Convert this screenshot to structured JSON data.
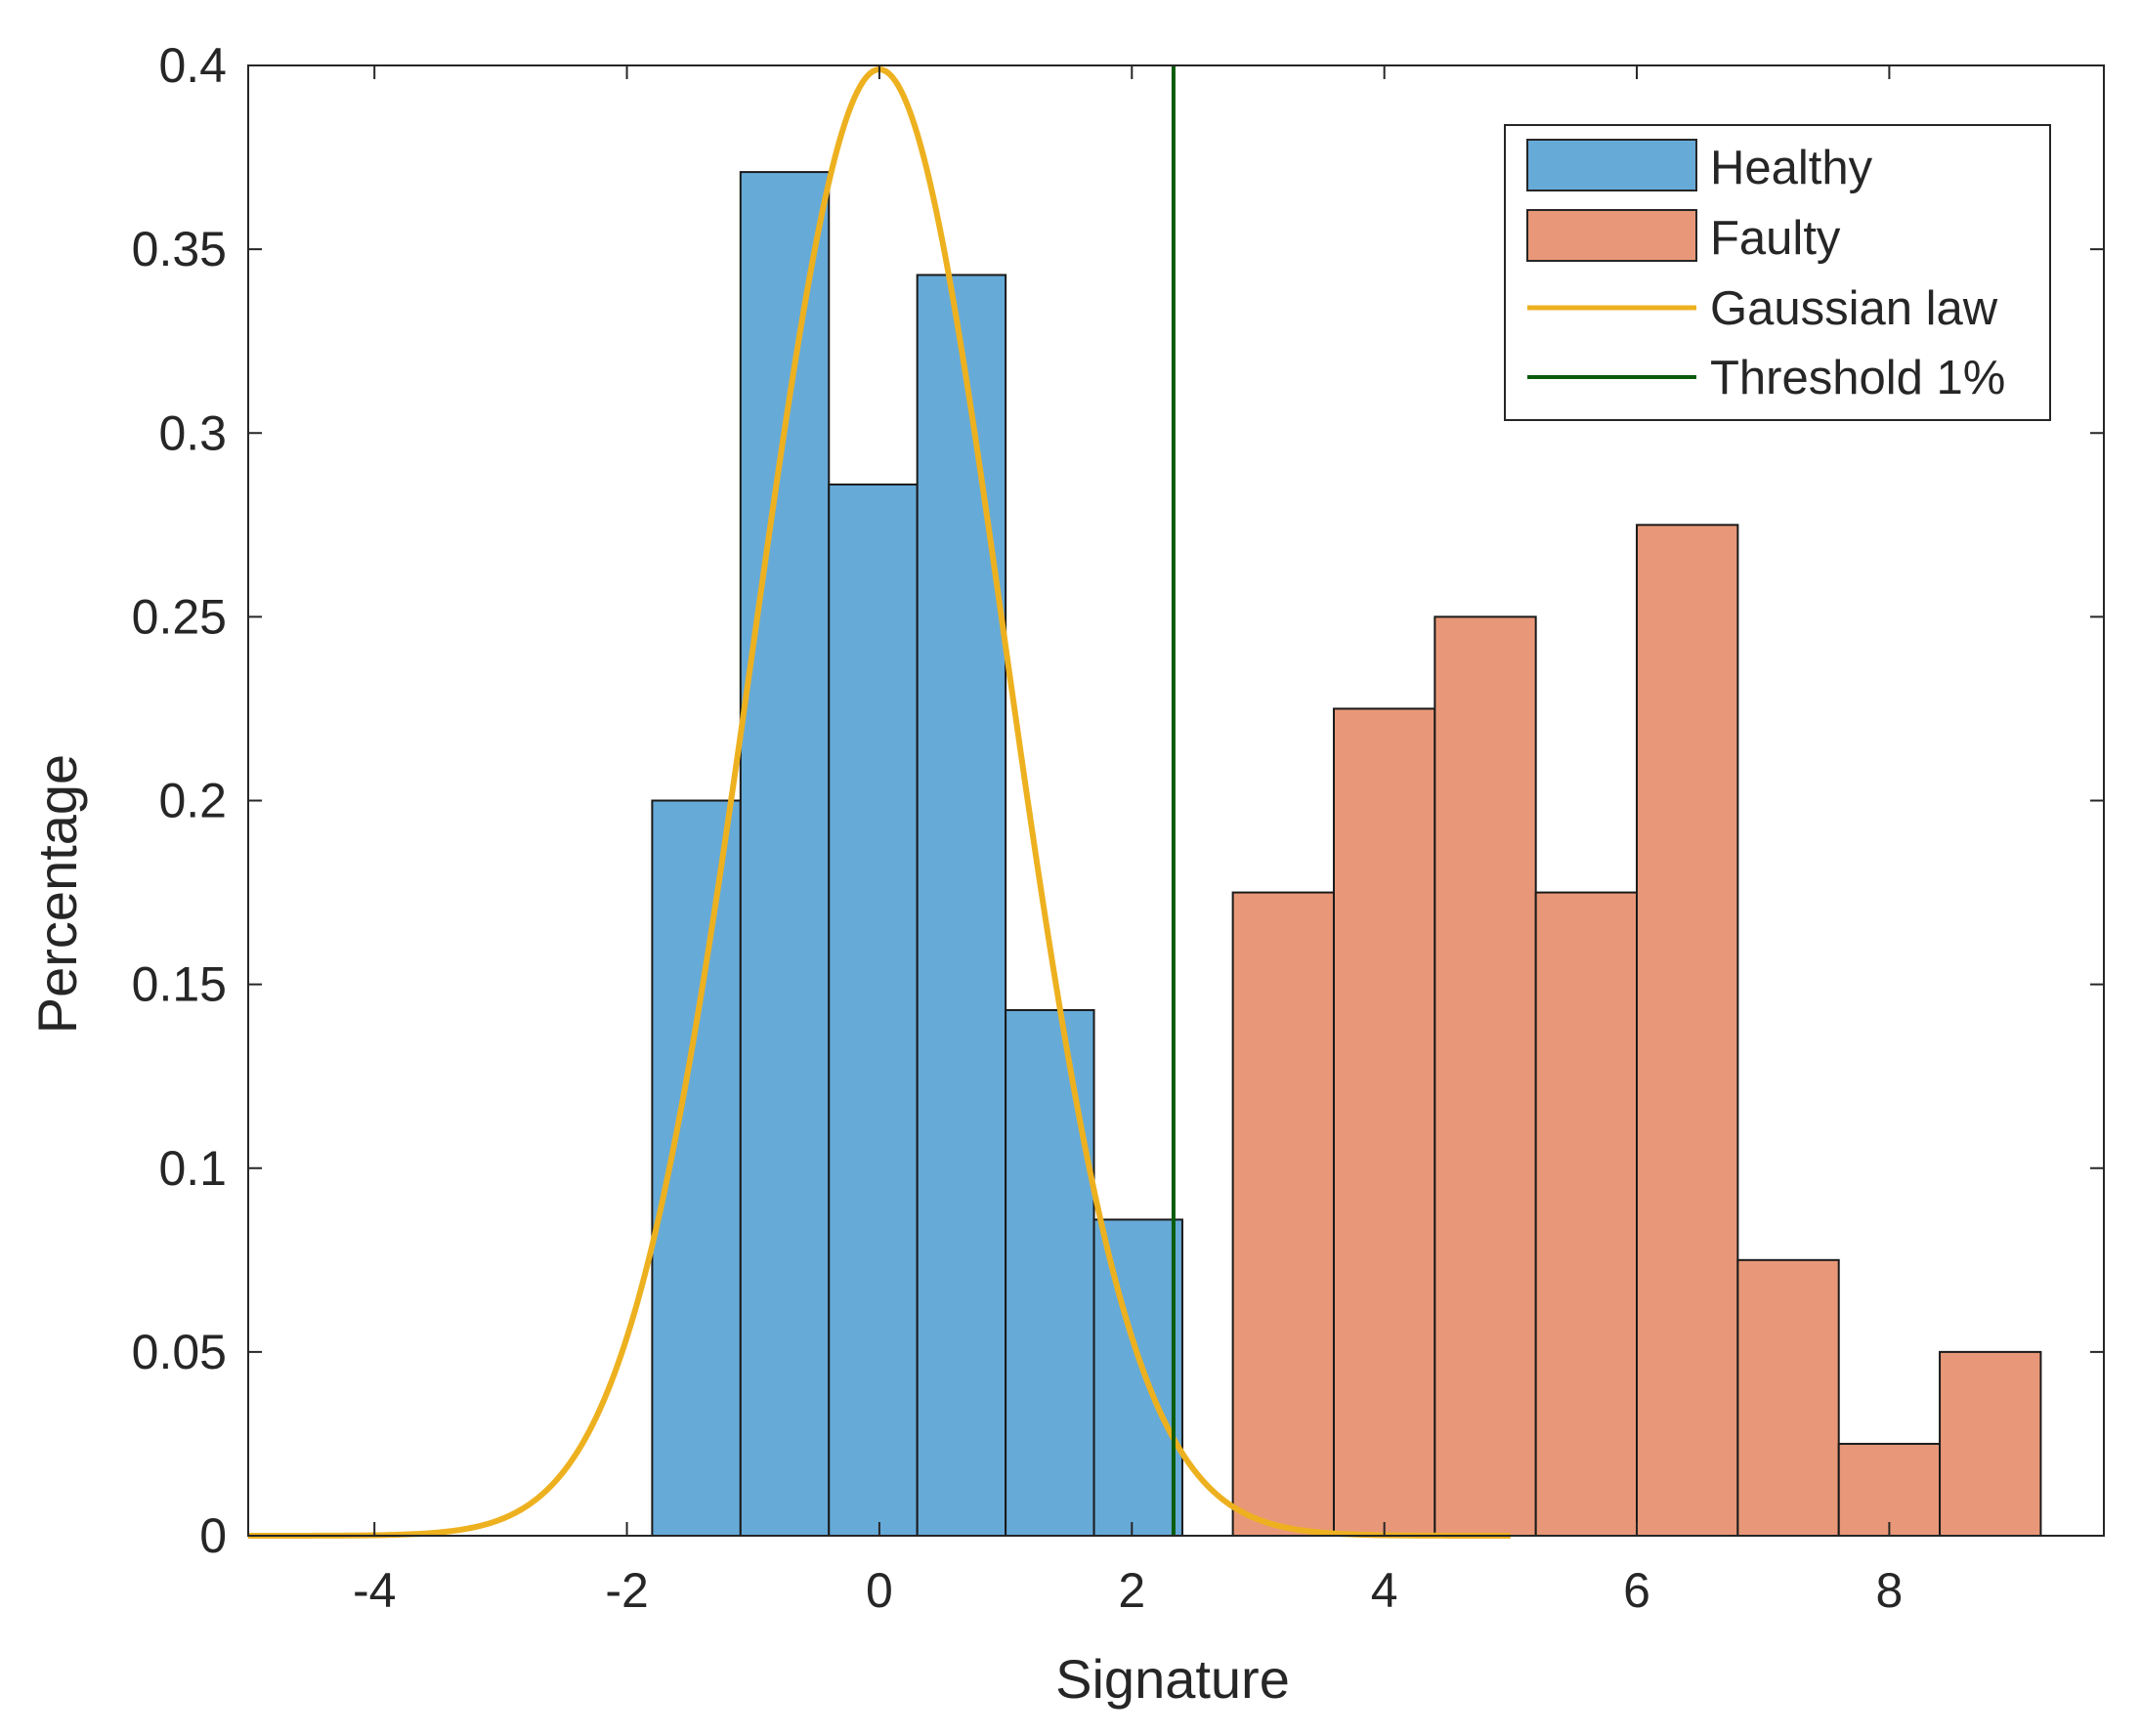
{
  "chart_data": {
    "type": "bar",
    "title": "",
    "xlabel": "Signature",
    "ylabel": "Percentage",
    "xlim": [
      -5,
      9.7
    ],
    "ylim": [
      0,
      0.4
    ],
    "xticks": [
      -4,
      -2,
      0,
      2,
      4,
      6,
      8
    ],
    "xtick_labels": [
      "-4",
      "-2",
      "0",
      "2",
      "4",
      "6",
      "8"
    ],
    "yticks": [
      0,
      0.05,
      0.1,
      0.15,
      0.2,
      0.25,
      0.3,
      0.35,
      0.4
    ],
    "ytick_labels": [
      "0",
      "0.05",
      "0.1",
      "0.15",
      "0.2",
      "0.25",
      "0.3",
      "0.35",
      "0.4"
    ],
    "grid": false,
    "legend_position": "top-right",
    "series": [
      {
        "name": "Healthy",
        "kind": "histogram",
        "color": "#66aad8",
        "bin_edges": [
          -1.8,
          -1.1,
          -0.4,
          0.3,
          1.0,
          1.7,
          2.4
        ],
        "values": [
          0.2,
          0.371,
          0.286,
          0.343,
          0.143,
          0.086
        ]
      },
      {
        "name": "Faulty",
        "kind": "histogram",
        "color": "#e89878",
        "bin_edges": [
          2.8,
          3.6,
          4.4,
          5.2,
          6.0,
          6.8,
          7.6,
          8.4,
          9.2
        ],
        "values": [
          0.175,
          0.225,
          0.25,
          0.175,
          0.275,
          0.075,
          0.025,
          0.05
        ]
      },
      {
        "name": "Gaussian law",
        "kind": "line",
        "color": "#edb120",
        "mean": 0,
        "std": 1,
        "x_range": [
          -5,
          5
        ]
      },
      {
        "name": "Threshold 1%",
        "kind": "vline",
        "color": "#0a5c0a",
        "x": 2.33
      }
    ]
  }
}
